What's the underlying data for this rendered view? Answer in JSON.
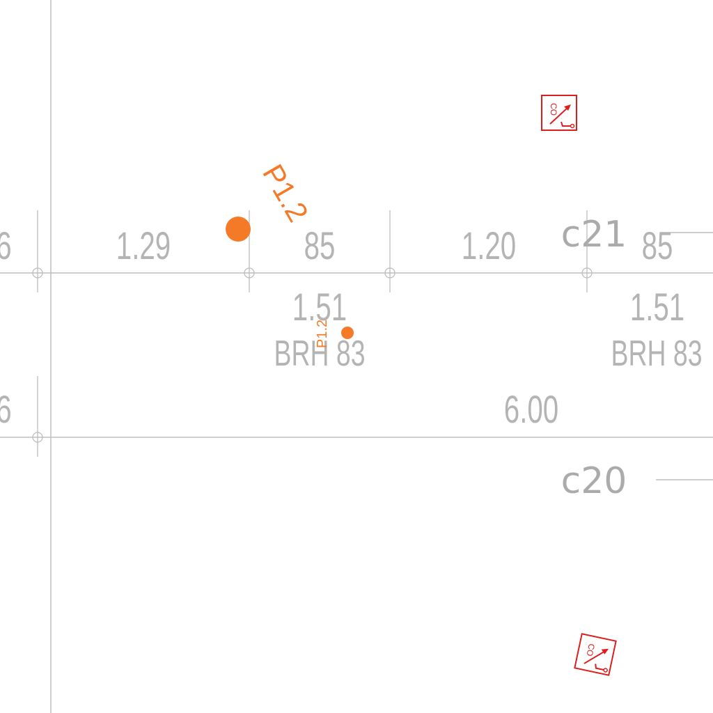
{
  "plan": {
    "dimensions_top": [
      "6",
      "1.29",
      "85",
      "1.20",
      "85"
    ],
    "dimensions_lower": [
      "1.51",
      "1.51"
    ],
    "brh_labels": [
      "BRH 83",
      "BRH 83"
    ],
    "dimension_bottom": [
      "6",
      "6.00"
    ],
    "rooms": [
      "c21",
      "c20"
    ],
    "point_tags": [
      "P1.2",
      "P1.2"
    ],
    "symbol_text": [
      "CO",
      "CO"
    ]
  },
  "colors": {
    "line": "#bdbdbd",
    "text": "#b4b4b4",
    "accent_orange": "#f47a28",
    "symbol_red": "#dd1e1e"
  },
  "icons": [
    "co-detector-icon",
    "co-detector-icon",
    "point-marker-icon",
    "point-marker-icon",
    "dimension-tick-icon"
  ]
}
